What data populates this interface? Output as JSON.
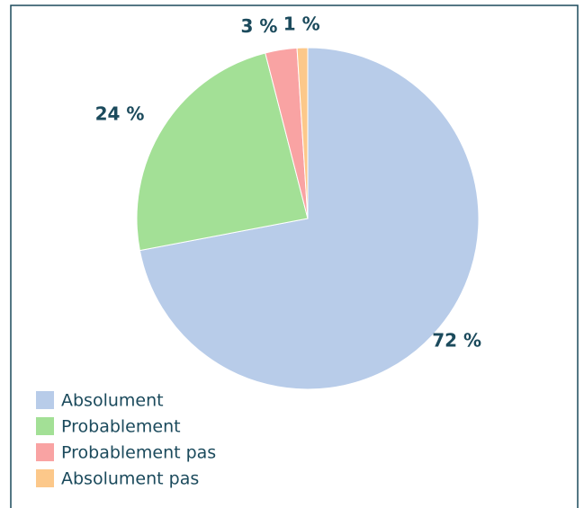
{
  "chart_data": {
    "type": "pie",
    "categories": [
      "Absolument",
      "Probablement",
      "Probablement pas",
      "Absolument pas"
    ],
    "values": [
      72,
      24,
      3,
      1
    ],
    "value_labels": [
      "72 %",
      "24 %",
      "3 %",
      "1 %"
    ],
    "colors": [
      "#b8cce9",
      "#a3e096",
      "#f9a3a3",
      "#fcc88a"
    ],
    "legend": "bottom-left"
  }
}
